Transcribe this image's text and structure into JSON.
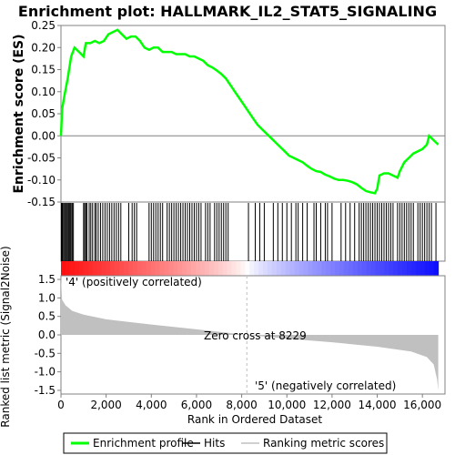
{
  "chart_data": {
    "type": "line",
    "title": "Enrichment plot: HALLMARK_IL2_STAT5_SIGNALING",
    "top_panel": {
      "ylabel": "Enrichment score (ES)",
      "ylim": [
        -0.15,
        0.25
      ],
      "yticks": [
        "-0.15",
        "-0.10",
        "-0.05",
        "0.00",
        "0.05",
        "0.10",
        "0.15",
        "0.20",
        "0.25"
      ],
      "ytick_values": [
        -0.15,
        -0.1,
        -0.05,
        0.0,
        0.05,
        0.1,
        0.15,
        0.2,
        0.25
      ],
      "series": [
        {
          "name": "Enrichment profile",
          "color": "#00ff00",
          "x": [
            0,
            50,
            150,
            300,
            450,
            600,
            800,
            1000,
            1100,
            1300,
            1500,
            1700,
            1900,
            2100,
            2300,
            2500,
            2700,
            2900,
            3100,
            3300,
            3500,
            3700,
            3900,
            4100,
            4300,
            4500,
            4700,
            4900,
            5100,
            5300,
            5500,
            5700,
            5900,
            6100,
            6300,
            6500,
            6700,
            6900,
            7100,
            7300,
            7500,
            7700,
            7900,
            8100,
            8300,
            8500,
            8700,
            8900,
            9100,
            9300,
            9500,
            9700,
            9900,
            10100,
            10300,
            10500,
            10700,
            10900,
            11100,
            11300,
            11500,
            11700,
            11900,
            12100,
            12300,
            12500,
            12700,
            12900,
            13100,
            13300,
            13500,
            13700,
            13900,
            14000,
            14100,
            14300,
            14500,
            14700,
            14900,
            15000,
            15200,
            15400,
            15600,
            15800,
            16000,
            16200,
            16300,
            16500,
            16700
          ],
          "y": [
            0.0,
            0.06,
            0.09,
            0.13,
            0.18,
            0.2,
            0.19,
            0.18,
            0.21,
            0.21,
            0.215,
            0.21,
            0.215,
            0.23,
            0.235,
            0.24,
            0.23,
            0.22,
            0.225,
            0.225,
            0.215,
            0.2,
            0.195,
            0.2,
            0.2,
            0.19,
            0.19,
            0.19,
            0.185,
            0.185,
            0.185,
            0.18,
            0.18,
            0.175,
            0.17,
            0.16,
            0.155,
            0.148,
            0.14,
            0.13,
            0.115,
            0.1,
            0.085,
            0.07,
            0.055,
            0.04,
            0.025,
            0.015,
            0.005,
            -0.005,
            -0.015,
            -0.025,
            -0.035,
            -0.045,
            -0.05,
            -0.055,
            -0.06,
            -0.068,
            -0.075,
            -0.08,
            -0.082,
            -0.088,
            -0.092,
            -0.097,
            -0.1,
            -0.1,
            -0.102,
            -0.105,
            -0.11,
            -0.118,
            -0.125,
            -0.128,
            -0.13,
            -0.12,
            -0.09,
            -0.085,
            -0.085,
            -0.09,
            -0.095,
            -0.08,
            -0.06,
            -0.05,
            -0.04,
            -0.035,
            -0.03,
            -0.02,
            0.0,
            -0.01,
            -0.02
          ]
        }
      ]
    },
    "hits_panel": {
      "legend_name": "Hits",
      "hit_positions": [
        20,
        60,
        110,
        150,
        200,
        240,
        290,
        330,
        370,
        410,
        450,
        500,
        550,
        1000,
        1050,
        1100,
        1150,
        1250,
        1320,
        1400,
        1500,
        1560,
        1650,
        1750,
        1850,
        1950,
        2050,
        2150,
        2250,
        2350,
        2450,
        2550,
        2650,
        3000,
        3150,
        3250,
        3350,
        3900,
        4000,
        4100,
        4200,
        4300,
        4400,
        4500,
        4700,
        4800,
        4900,
        5000,
        5100,
        5200,
        5300,
        5400,
        5500,
        5600,
        5700,
        5800,
        5900,
        6000,
        6100,
        6200,
        6400,
        6500,
        6600,
        6800,
        6900,
        7000,
        7100,
        7200,
        7300,
        7400,
        8300,
        8600,
        8800,
        9000,
        9400,
        9600,
        9800,
        10000,
        10200,
        10400,
        10500,
        10700,
        10900,
        11200,
        11300,
        11500,
        11700,
        11800,
        12000,
        12400,
        12600,
        12800,
        13000,
        13200,
        13300,
        13400,
        13500,
        13600,
        13700,
        13800,
        13900,
        14000,
        14100,
        14200,
        14300,
        14400,
        14500,
        14600,
        14700,
        14900,
        15000,
        15100,
        15200,
        15300,
        15400,
        15500,
        15600,
        15800,
        15900,
        16000,
        16100,
        16200,
        16300,
        16400,
        16600
      ]
    },
    "bottom_panel": {
      "ylabel": "Ranked list metric (Signal2Noise)",
      "xlabel": "Rank in Ordered Dataset",
      "ylim": [
        -1.6,
        1.6
      ],
      "yticks": [
        "-1.5",
        "-1.0",
        "-0.5",
        "0.0",
        "0.5",
        "1.0",
        "1.5"
      ],
      "ytick_values": [
        -1.5,
        -1.0,
        -0.5,
        0.0,
        0.5,
        1.0,
        1.5
      ],
      "xlim": [
        0,
        17000
      ],
      "xticks": [
        "0",
        "2,000",
        "4,000",
        "6,000",
        "8,000",
        "10,000",
        "12,000",
        "14,000",
        "16,000"
      ],
      "xtick_values": [
        0,
        2000,
        4000,
        6000,
        8000,
        10000,
        12000,
        14000,
        16000
      ],
      "metric_x": [
        0,
        50,
        200,
        500,
        1000,
        2000,
        4000,
        6000,
        8229,
        10000,
        12000,
        14000,
        15500,
        16200,
        16500,
        16650,
        16700
      ],
      "metric_y": [
        1.6,
        0.95,
        0.8,
        0.65,
        0.55,
        0.42,
        0.28,
        0.15,
        0.0,
        -0.1,
        -0.2,
        -0.32,
        -0.45,
        -0.6,
        -0.8,
        -1.2,
        -1.5
      ],
      "zero_cross_label": "Zero cross at 8229",
      "zero_cross_x": 8229,
      "pos_label": "'4' (positively correlated)",
      "neg_label": "'5' (negatively correlated)",
      "pos_color": "#ff0000",
      "neg_color": "#0000ff"
    },
    "legend": {
      "items": [
        {
          "label": "Enrichment profile",
          "color": "#00ff00"
        },
        {
          "label": "Hits",
          "color": "#000000"
        },
        {
          "label": "Ranking metric scores",
          "color": "#c0c0c0"
        }
      ]
    },
    "dataset_size": 16700
  }
}
